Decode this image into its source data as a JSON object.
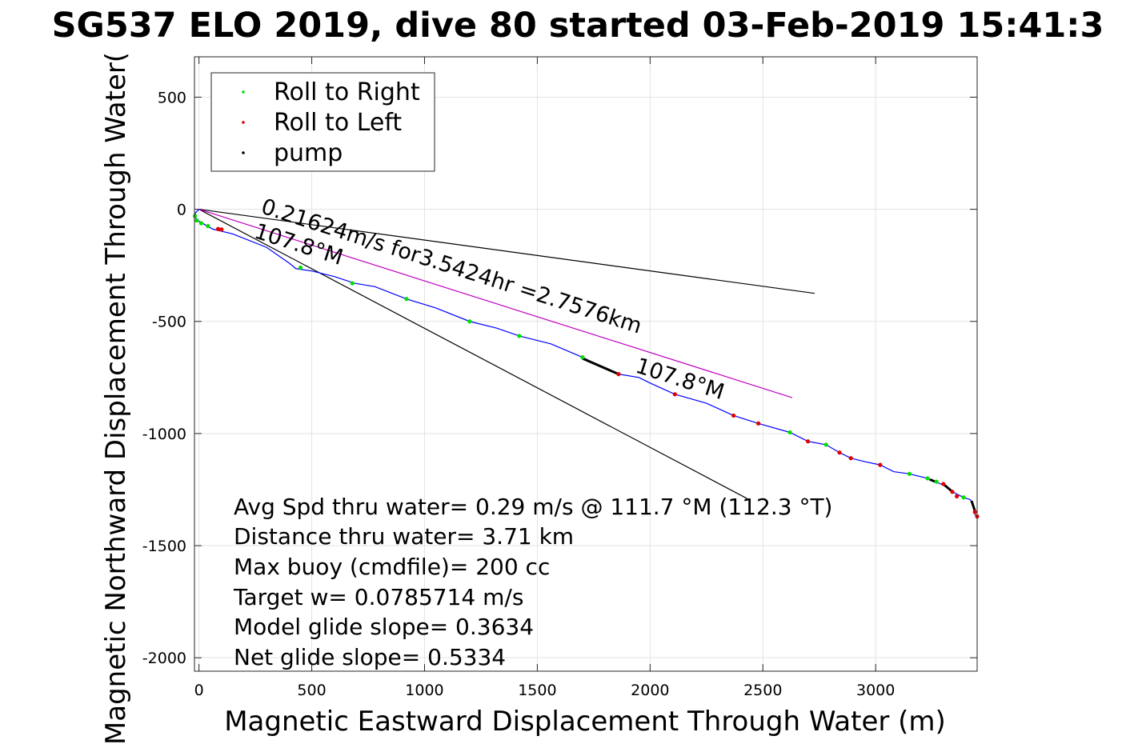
{
  "chart_data": {
    "type": "line",
    "title": "SG537 ELO 2019, dive 80 started 03-Feb-2019 15:41:3",
    "xlabel": "Magnetic Eastward Displacement Through Water (m)",
    "ylabel": "Magnetic Northward Displacement Through Water(",
    "xlim": [
      -20,
      3450
    ],
    "ylim": [
      -2060,
      680
    ],
    "xticks": [
      0,
      500,
      1000,
      1500,
      2000,
      2500,
      3000
    ],
    "yticks": [
      500,
      0,
      -500,
      -1000,
      -1500,
      -2000
    ],
    "grid": true,
    "legend": {
      "position": "top-left",
      "entries": [
        {
          "label": "Roll to Right",
          "color": "#00e000"
        },
        {
          "label": "Roll to Left",
          "color": "#e00000"
        },
        {
          "label": "pump",
          "color": "#000000"
        }
      ]
    },
    "track": {
      "color": "#0000ff",
      "points": [
        [
          0,
          0
        ],
        [
          -15,
          -15
        ],
        [
          -18,
          -35
        ],
        [
          -5,
          -50
        ],
        [
          20,
          -65
        ],
        [
          60,
          -88
        ],
        [
          150,
          -110
        ],
        [
          300,
          -170
        ],
        [
          400,
          -240
        ],
        [
          430,
          -265
        ],
        [
          500,
          -275
        ],
        [
          600,
          -300
        ],
        [
          690,
          -330
        ],
        [
          780,
          -345
        ],
        [
          920,
          -400
        ],
        [
          1050,
          -440
        ],
        [
          1200,
          -500
        ],
        [
          1320,
          -530
        ],
        [
          1420,
          -565
        ],
        [
          1560,
          -600
        ],
        [
          1700,
          -660
        ],
        [
          1780,
          -700
        ],
        [
          1860,
          -735
        ],
        [
          1950,
          -750
        ],
        [
          2000,
          -775
        ],
        [
          2110,
          -825
        ],
        [
          2250,
          -865
        ],
        [
          2370,
          -920
        ],
        [
          2480,
          -955
        ],
        [
          2620,
          -995
        ],
        [
          2700,
          -1035
        ],
        [
          2780,
          -1050
        ],
        [
          2840,
          -1085
        ],
        [
          2890,
          -1110
        ],
        [
          2950,
          -1125
        ],
        [
          3020,
          -1140
        ],
        [
          3080,
          -1170
        ],
        [
          3150,
          -1180
        ],
        [
          3230,
          -1200
        ],
        [
          3300,
          -1230
        ],
        [
          3340,
          -1260
        ],
        [
          3390,
          -1285
        ],
        [
          3420,
          -1295
        ],
        [
          3435,
          -1330
        ],
        [
          3440,
          -1360
        ],
        [
          3450,
          -1375
        ]
      ]
    },
    "roll_right_points": [
      [
        -18,
        -30
      ],
      [
        -10,
        -50
      ],
      [
        10,
        -62
      ],
      [
        40,
        -75
      ],
      [
        450,
        -260
      ],
      [
        680,
        -330
      ],
      [
        920,
        -400
      ],
      [
        1200,
        -500
      ],
      [
        1420,
        -565
      ],
      [
        1700,
        -660
      ],
      [
        2620,
        -995
      ],
      [
        2780,
        -1050
      ],
      [
        3150,
        -1180
      ],
      [
        3230,
        -1200
      ],
      [
        3270,
        -1215
      ],
      [
        3390,
        -1285
      ]
    ],
    "roll_left_points": [
      [
        85,
        -88
      ],
      [
        100,
        -90
      ],
      [
        1860,
        -735
      ],
      [
        2110,
        -825
      ],
      [
        2370,
        -920
      ],
      [
        2480,
        -955
      ],
      [
        2700,
        -1035
      ],
      [
        2840,
        -1085
      ],
      [
        2890,
        -1110
      ],
      [
        3020,
        -1140
      ],
      [
        3300,
        -1225
      ],
      [
        3340,
        -1260
      ],
      [
        3360,
        -1280
      ],
      [
        3440,
        -1350
      ],
      [
        3450,
        -1370
      ]
    ],
    "pump_segments": [
      [
        [
          1700,
          -665
        ],
        [
          1860,
          -735
        ]
      ],
      [
        [
          3240,
          -1205
        ],
        [
          3265,
          -1215
        ]
      ],
      [
        [
          3300,
          -1225
        ],
        [
          3335,
          -1255
        ]
      ],
      [
        [
          3425,
          -1300
        ],
        [
          3440,
          -1345
        ]
      ]
    ],
    "reference_lines": [
      {
        "from": [
          0,
          0
        ],
        "to": [
          2730,
          -375
        ],
        "color": "#000000"
      },
      {
        "from": [
          0,
          0
        ],
        "to": [
          2430,
          -1290
        ],
        "color": "#000000"
      },
      {
        "from": [
          0,
          0
        ],
        "to": [
          2630,
          -840
        ],
        "color": "#c000c0"
      }
    ],
    "annotations": [
      {
        "text": "0.21624m/s for3.5424hr =2.7576km",
        "x": 270,
        "y": -15,
        "rotation": 17.7
      },
      {
        "text": "107.8°M",
        "x": 240,
        "y": -125,
        "rotation": 17.7
      },
      {
        "text": "107.8°M",
        "x": 1930,
        "y": -725,
        "rotation": 17.7
      }
    ],
    "summary": [
      "Avg Spd thru water=  0.29 m/s @ 111.7 °M (112.3 °T)",
      "Distance thru water=  3.71 km",
      "Max buoy (cmdfile)= 200 cc",
      "Target w= 0.0785714 m/s",
      "Model glide slope= 0.3634",
      "Net glide slope= 0.5334"
    ]
  }
}
